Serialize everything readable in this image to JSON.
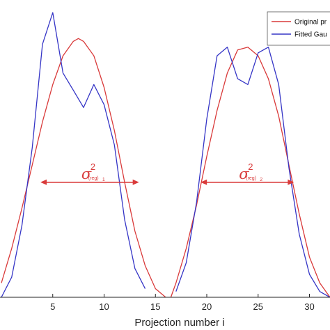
{
  "chart_data": {
    "type": "line",
    "xlabel": "Projection number i",
    "ylabel": "",
    "xlim": [
      0,
      32
    ],
    "ylim": [
      0,
      1
    ],
    "grid": false,
    "legend": {
      "placement": "top-right",
      "entries": [
        {
          "label": "Original pr",
          "color": "#d93a3a"
        },
        {
          "label": "Fitted Gau",
          "color": "#3535c6"
        }
      ]
    },
    "x_ticks": [
      5,
      10,
      15,
      20,
      25,
      30
    ],
    "series": [
      {
        "name": "Original pr",
        "color": "#d93a3a",
        "x": [
          0,
          1,
          2,
          3,
          4,
          5,
          6,
          7,
          7.5,
          8,
          9,
          10,
          11,
          12,
          13,
          14,
          15,
          16
        ],
        "y": [
          0.05,
          0.17,
          0.31,
          0.46,
          0.61,
          0.74,
          0.84,
          0.89,
          0.9,
          0.89,
          0.84,
          0.73,
          0.58,
          0.4,
          0.23,
          0.11,
          0.03,
          0.0
        ]
      },
      {
        "name": "Fitted Gau",
        "color": "#3535c6",
        "x": [
          0,
          1,
          2,
          3,
          4,
          5,
          6,
          7,
          8,
          9,
          10,
          11,
          12,
          13,
          14
        ],
        "y": [
          0.0,
          0.07,
          0.25,
          0.52,
          0.88,
          0.99,
          0.78,
          0.72,
          0.66,
          0.74,
          0.67,
          0.53,
          0.27,
          0.1,
          0.03
        ]
      },
      {
        "name": "Original pr",
        "color": "#d93a3a",
        "x": [
          16.5,
          17,
          18,
          19,
          20,
          21,
          22,
          23,
          24,
          25,
          26,
          27,
          28,
          29,
          30,
          31,
          32
        ],
        "y": [
          0.0,
          0.05,
          0.17,
          0.32,
          0.49,
          0.65,
          0.78,
          0.86,
          0.87,
          0.84,
          0.76,
          0.63,
          0.46,
          0.29,
          0.14,
          0.05,
          0.0
        ]
      },
      {
        "name": "Fitted Gau",
        "color": "#3535c6",
        "x": [
          17,
          18,
          19,
          20,
          21,
          22,
          23,
          24,
          25,
          26,
          27,
          28,
          29,
          30,
          31,
          32
        ],
        "y": [
          0.02,
          0.12,
          0.33,
          0.62,
          0.84,
          0.87,
          0.76,
          0.74,
          0.85,
          0.87,
          0.74,
          0.45,
          0.22,
          0.08,
          0.02,
          0.0
        ]
      }
    ],
    "annotations": [
      {
        "symbol": "σ",
        "superscript": "2",
        "subscript": "(reg)",
        "index": "1",
        "x_from": 3.8,
        "x_to": 13.4,
        "y": 0.4,
        "color": "#d93a3a"
      },
      {
        "symbol": "σ",
        "superscript": "2",
        "subscript": "(reg)",
        "index": "2",
        "x_from": 19.4,
        "x_to": 28.5,
        "y": 0.4,
        "color": "#d93a3a"
      }
    ]
  }
}
